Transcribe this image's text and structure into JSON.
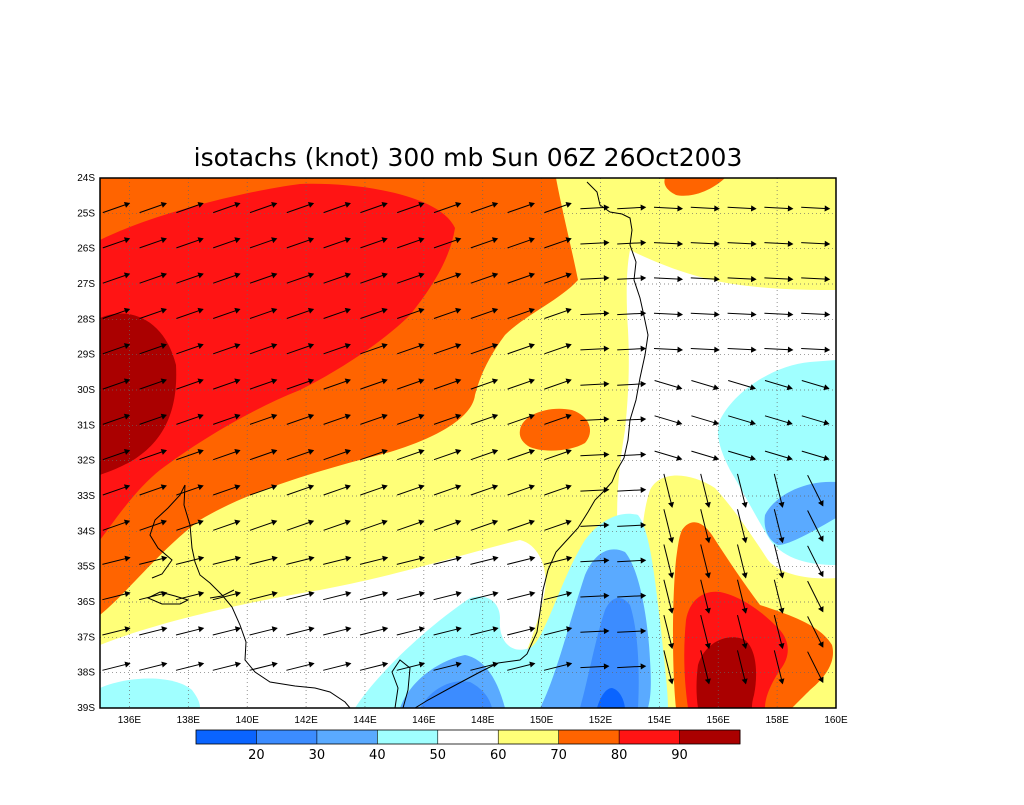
{
  "title": "isotachs (knot) 300 mb Sun 06Z 26Oct2003",
  "map": {
    "lon_range": [
      135,
      160
    ],
    "lat_range": [
      -39,
      -24
    ],
    "lon_ticks": [
      {
        "value": 136,
        "label": "136E"
      },
      {
        "value": 138,
        "label": "138E"
      },
      {
        "value": 140,
        "label": "140E"
      },
      {
        "value": 142,
        "label": "142E"
      },
      {
        "value": 144,
        "label": "144E"
      },
      {
        "value": 146,
        "label": "146E"
      },
      {
        "value": 148,
        "label": "148E"
      },
      {
        "value": 150,
        "label": "150E"
      },
      {
        "value": 152,
        "label": "152E"
      },
      {
        "value": 154,
        "label": "154E"
      },
      {
        "value": 156,
        "label": "156E"
      },
      {
        "value": 158,
        "label": "158E"
      },
      {
        "value": 160,
        "label": "160E"
      }
    ],
    "lat_ticks": [
      {
        "value": -24,
        "label": "24S"
      },
      {
        "value": -25,
        "label": "25S"
      },
      {
        "value": -26,
        "label": "26S"
      },
      {
        "value": -27,
        "label": "27S"
      },
      {
        "value": -28,
        "label": "28S"
      },
      {
        "value": -29,
        "label": "29S"
      },
      {
        "value": -30,
        "label": "30S"
      },
      {
        "value": -31,
        "label": "31S"
      },
      {
        "value": -32,
        "label": "32S"
      },
      {
        "value": -33,
        "label": "33S"
      },
      {
        "value": -34,
        "label": "34S"
      },
      {
        "value": -35,
        "label": "35S"
      },
      {
        "value": -36,
        "label": "36S"
      },
      {
        "value": -37,
        "label": "37S"
      },
      {
        "value": -38,
        "label": "38S"
      },
      {
        "value": -39,
        "label": "39S"
      }
    ],
    "grid": "dotted"
  },
  "colorbar": {
    "levels": [
      20,
      30,
      40,
      50,
      60,
      70,
      80,
      90
    ],
    "labels": [
      "20",
      "30",
      "40",
      "50",
      "60",
      "70",
      "80",
      "90"
    ],
    "colors": [
      "#0a64ff",
      "#3c8cff",
      "#5aaaff",
      "#a0ffff",
      "#ffffff",
      "#ffff78",
      "#ff6400",
      "#ff1414",
      "#aa0000"
    ]
  },
  "colors": {
    "c10_20": "#0a64ff",
    "c20_30": "#3c8cff",
    "c30_40": "#5aaaff",
    "c40_50": "#a0ffff",
    "c50_60": "#ffffff",
    "c60_70": "#ffff78",
    "c70_80": "#ff6400",
    "c80_90": "#ff1414",
    "c90_up": "#aa0000"
  }
}
